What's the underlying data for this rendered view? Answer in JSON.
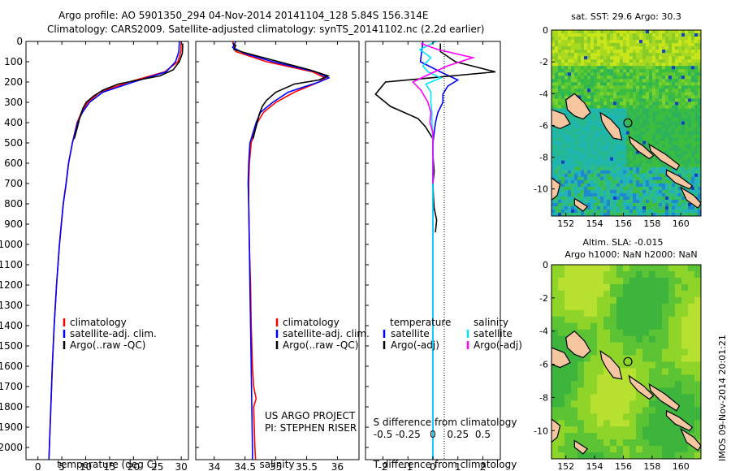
{
  "header": {
    "line1": "Argo profile: AO 5901350_294 04-Nov-2014 20141104_128 5.84S 156.314E",
    "line2": "Climatology: CARS2009. Satellite-adjusted climatology: synTS_20141102.nc (2.2d earlier)"
  },
  "colors": {
    "climatology": "#ff0000",
    "satellite": "#0000ff",
    "argo": "#000000",
    "salinity_sat": "#00e5ff",
    "salinity_argo": "#ff00ff",
    "land": "#f5c6a0"
  },
  "chart_data": [
    {
      "type": "line",
      "name": "temperature-profile",
      "xlabel": "temperature (deg C)",
      "ylim": [
        0,
        2060
      ],
      "xlim": [
        -2.5,
        31.5
      ],
      "xticks": [
        0,
        5,
        10,
        15,
        20,
        25,
        30
      ],
      "yticks": [
        0,
        100,
        200,
        300,
        400,
        500,
        600,
        700,
        800,
        900,
        1000,
        1100,
        1200,
        1300,
        1400,
        1500,
        1600,
        1700,
        1800,
        1900,
        2000
      ],
      "legend": [
        "climatology",
        "satellite-adj. clim.",
        "Argo(..raw -QC)"
      ],
      "series": [
        {
          "key": "climatology",
          "depth": [
            0,
            50,
            100,
            150,
            200,
            250,
            300,
            350,
            400,
            500,
            600,
            700,
            800,
            900,
            1000,
            1200,
            1400,
            1600,
            1800,
            2000,
            2060
          ],
          "values": [
            30,
            29.9,
            29.3,
            26.5,
            19,
            13,
            10.4,
            9.1,
            8.2,
            7.2,
            6.4,
            5.9,
            5.3,
            4.9,
            4.5,
            3.9,
            3.4,
            3.0,
            2.7,
            2.4,
            2.3
          ]
        },
        {
          "key": "satellite",
          "depth": [
            0,
            50,
            100,
            150,
            200,
            250,
            300,
            350,
            400,
            500,
            600,
            700,
            800,
            900,
            1000,
            1200,
            1400,
            1600,
            1800,
            2000,
            2060
          ],
          "values": [
            29.6,
            29.5,
            28.8,
            26.8,
            20,
            13.6,
            10.8,
            9.3,
            8.3,
            7.2,
            6.4,
            5.9,
            5.3,
            4.9,
            4.5,
            3.9,
            3.4,
            3.0,
            2.7,
            2.4,
            2.3
          ]
        },
        {
          "key": "argo",
          "depth": [
            10,
            30,
            60,
            100,
            140,
            170,
            190,
            210,
            240,
            270,
            300,
            330,
            380,
            420,
            480
          ],
          "values": [
            30.3,
            30.3,
            30.2,
            29.6,
            28.3,
            25.5,
            21,
            16.8,
            13.6,
            11.6,
            10.1,
            9.4,
            8.7,
            8.3,
            7.6
          ]
        }
      ]
    },
    {
      "type": "line",
      "name": "salinity-profile",
      "xlabel": "salinity",
      "ylim": [
        0,
        2060
      ],
      "xlim": [
        33.7,
        36.35
      ],
      "xticks": [
        34,
        34.5,
        35,
        35.5,
        36
      ],
      "legend": [
        "climatology",
        "satellite-adj. clim.",
        "Argo(..raw -QC)"
      ],
      "annotation": [
        "US ARGO PROJECT",
        "PI: STEPHEN RISER"
      ],
      "series": [
        {
          "key": "climatology",
          "depth": [
            0,
            50,
            100,
            150,
            180,
            200,
            250,
            300,
            350,
            400,
            500,
            600,
            700,
            800,
            1000,
            1200,
            1400,
            1600,
            1700,
            1760,
            1800,
            2000,
            2060
          ],
          "values": [
            34.3,
            34.35,
            34.85,
            35.6,
            35.8,
            35.7,
            35.3,
            35.0,
            34.8,
            34.7,
            34.6,
            34.57,
            34.56,
            34.56,
            34.57,
            34.59,
            34.6,
            34.62,
            34.64,
            34.68,
            34.64,
            34.66,
            34.67
          ]
        },
        {
          "key": "satellite",
          "depth": [
            0,
            30,
            60,
            100,
            150,
            180,
            200,
            250,
            300,
            350,
            400,
            500,
            600,
            700,
            800,
            1000,
            1200,
            1400,
            1600,
            1800,
            2000,
            2060
          ],
          "values": [
            34.35,
            34.3,
            34.5,
            34.95,
            35.65,
            35.86,
            35.7,
            35.2,
            34.95,
            34.75,
            34.68,
            34.58,
            34.56,
            34.55,
            34.56,
            34.57,
            34.58,
            34.59,
            34.6,
            34.61,
            34.62,
            34.62
          ]
        },
        {
          "key": "argo",
          "depth": [
            10,
            20,
            40,
            60,
            100,
            140,
            170,
            190,
            210,
            250,
            290,
            320,
            360,
            420,
            480
          ],
          "values": [
            34.3,
            34.35,
            34.32,
            34.55,
            35.05,
            35.55,
            35.85,
            35.7,
            35.3,
            35.0,
            34.85,
            34.78,
            34.73,
            34.68,
            34.63
          ]
        }
      ]
    },
    {
      "type": "line",
      "name": "difference-profile",
      "xlabel": "T difference from climatology",
      "xlabel_top": "S difference from climatology",
      "ylim": [
        0,
        2060
      ],
      "xlim": [
        -2.7,
        2.7
      ],
      "xticks": [
        -2,
        -1,
        0,
        1,
        2
      ],
      "xticks_top": [
        -0.5,
        -0.25,
        0,
        0.25,
        0.5
      ],
      "xtick_labels_top": [
        "-0.5",
        "-0.25",
        "0",
        "0.25",
        "0.5"
      ],
      "legend_left_title": "temperature",
      "legend_right_title": "salinity",
      "legend_left": [
        "satellite",
        "Argo(-adj)"
      ],
      "legend_right": [
        "satellite",
        "Argo(-adj)"
      ],
      "series": [
        {
          "key": "t_sat",
          "depth": [
            0,
            50,
            100,
            150,
            190,
            220,
            260,
            300,
            350,
            400,
            500,
            600,
            700,
            800,
            900,
            1000,
            1200,
            1400,
            1600,
            1800,
            2000,
            2060
          ],
          "values": [
            -0.4,
            -0.45,
            -0.5,
            0.3,
            1.0,
            0.6,
            0.4,
            0.4,
            0.2,
            0.1,
            0.0,
            0.0,
            0.0,
            0.0,
            0.0,
            0.0,
            0.0,
            0.0,
            0.0,
            0.0,
            0.0,
            0.0
          ]
        },
        {
          "key": "t_argo",
          "depth": [
            10,
            50,
            100,
            150,
            200,
            260,
            320,
            380,
            420,
            480,
            560,
            640,
            700,
            760,
            820,
            880,
            940
          ],
          "values": [
            0.3,
            0.3,
            0.9,
            2.5,
            -1.9,
            -2.3,
            -1.7,
            -0.6,
            -0.3,
            0.0,
            0.0,
            0.05,
            0.0,
            0.02,
            0.05,
            0.15,
            0.1
          ]
        },
        {
          "key": "s_sat",
          "depth": [
            0,
            40,
            80,
            120,
            150,
            180,
            210,
            250,
            300,
            350,
            400,
            500,
            600,
            700,
            800,
            900,
            1000,
            1200,
            1400,
            1600,
            1700,
            1800,
            2000,
            2060
          ],
          "values": [
            0.03,
            -0.13,
            -0.02,
            -0.1,
            -0.05,
            0.08,
            -0.07,
            -0.02,
            -0.02,
            -0.01,
            -0.01,
            0.0,
            0.0,
            0.0,
            0.0,
            0.0,
            0.0,
            0.0,
            0.0,
            0.0,
            0.0,
            0.0,
            0.0,
            0.0
          ]
        },
        {
          "key": "s_argo",
          "depth": [
            10,
            40,
            80,
            120,
            160,
            200,
            240,
            300,
            350,
            400,
            450,
            500,
            600,
            700
          ],
          "values": [
            -0.12,
            0.05,
            0.4,
            0.15,
            -0.03,
            -0.2,
            -0.12,
            -0.05,
            -0.02,
            -0.03,
            0.0,
            0.0,
            0.0,
            0.0
          ]
        }
      ]
    },
    {
      "type": "heatmap",
      "name": "sst-map",
      "title": "sat. SST: 29.6  Argo: 30.3",
      "xlim": [
        151,
        161.4
      ],
      "ylim": [
        -11.7,
        0
      ],
      "xticks": [
        152,
        154,
        156,
        158,
        160
      ],
      "yticks": [
        0,
        -2,
        -4,
        -6,
        -8,
        -10
      ],
      "marker": {
        "lon": 156.314,
        "lat": -5.84
      }
    },
    {
      "type": "heatmap",
      "name": "sla-map",
      "title": "Altim. SLA: -0.015",
      "subtitle": "Argo h1000: NaN h2000: NaN",
      "xlim": [
        151,
        161.4
      ],
      "ylim": [
        -11.7,
        0
      ],
      "xticks": [
        152,
        154,
        156,
        158,
        160
      ],
      "yticks": [
        0,
        -2,
        -4,
        -6,
        -8,
        -10
      ],
      "marker": {
        "lon": 156.314,
        "lat": -5.84
      }
    }
  ],
  "footer": {
    "imos_stamp": "IMOS 09-Nov-2014 20:01:21"
  }
}
